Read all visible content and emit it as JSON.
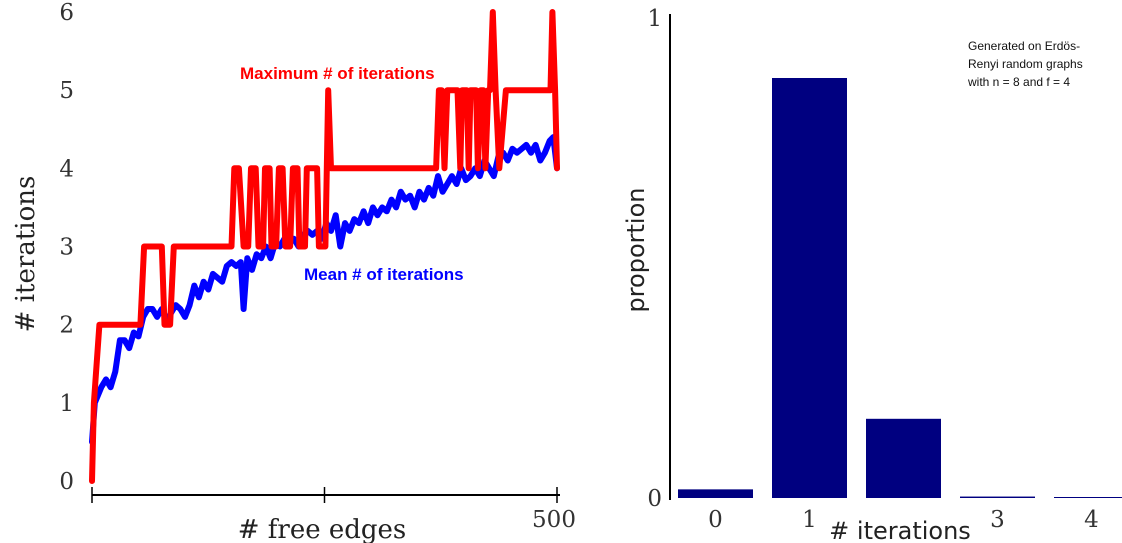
{
  "chart_data": [
    {
      "type": "line",
      "xlabel": "# free  edges",
      "ylabel": "# iterations",
      "xlim": [
        0,
        500
      ],
      "ylim": [
        0,
        6
      ],
      "x_tick_labels": [
        {
          "x": 0,
          "label": ""
        },
        {
          "x": 250,
          "label": ""
        },
        {
          "x": 500,
          "label": "500"
        }
      ],
      "y_ticks": [
        0,
        1,
        2,
        3,
        4,
        5,
        6
      ],
      "annotations": {
        "max_label": "Maximum # of iterations",
        "mean_label": "Mean # of iterations"
      },
      "series": [
        {
          "name": "Maximum # of iterations",
          "color": "#ff0000",
          "points": [
            [
              0,
              0
            ],
            [
              2,
              1
            ],
            [
              8,
              2
            ],
            [
              52,
              2
            ],
            [
              56,
              3
            ],
            [
              75,
              3
            ],
            [
              78,
              2
            ],
            [
              84,
              2
            ],
            [
              88,
              3
            ],
            [
              150,
              3
            ],
            [
              153,
              4
            ],
            [
              158,
              4
            ],
            [
              163,
              3
            ],
            [
              168,
              3
            ],
            [
              171,
              4
            ],
            [
              176,
              4
            ],
            [
              179,
              3
            ],
            [
              184,
              3
            ],
            [
              186,
              4
            ],
            [
              191,
              4
            ],
            [
              193,
              3
            ],
            [
              198,
              3
            ],
            [
              201,
              4
            ],
            [
              205,
              4
            ],
            [
              208,
              3
            ],
            [
              213,
              3
            ],
            [
              216,
              4
            ],
            [
              221,
              4
            ],
            [
              223,
              3
            ],
            [
              229,
              3
            ],
            [
              231,
              4
            ],
            [
              242,
              4
            ],
            [
              244,
              3
            ],
            [
              251,
              3
            ],
            [
              254,
              5
            ],
            [
              257,
              4
            ],
            [
              370,
              4
            ],
            [
              373,
              5
            ],
            [
              376,
              5
            ],
            [
              379,
              4
            ],
            [
              382,
              5
            ],
            [
              393,
              5
            ],
            [
              396,
              4
            ],
            [
              398,
              5
            ],
            [
              403,
              5
            ],
            [
              405,
              4
            ],
            [
              407,
              5
            ],
            [
              413,
              5
            ],
            [
              415,
              4
            ],
            [
              418,
              5
            ],
            [
              421,
              5
            ],
            [
              423,
              4
            ],
            [
              426,
              5
            ],
            [
              428,
              5
            ],
            [
              431,
              6
            ],
            [
              434,
              5
            ],
            [
              438,
              4
            ],
            [
              445,
              5
            ],
            [
              480,
              5
            ],
            [
              493,
              5
            ],
            [
              495,
              6
            ],
            [
              498,
              5
            ],
            [
              500,
              4
            ]
          ]
        },
        {
          "name": "Mean # of iterations",
          "color": "#0000ff",
          "points": [
            [
              0,
              0.5
            ],
            [
              3,
              1.0
            ],
            [
              10,
              1.2
            ],
            [
              15,
              1.3
            ],
            [
              20,
              1.2
            ],
            [
              25,
              1.4
            ],
            [
              30,
              1.8
            ],
            [
              35,
              1.8
            ],
            [
              40,
              1.7
            ],
            [
              45,
              1.9
            ],
            [
              50,
              1.85
            ],
            [
              55,
              2.1
            ],
            [
              60,
              2.2
            ],
            [
              65,
              2.2
            ],
            [
              70,
              2.1
            ],
            [
              75,
              2.2
            ],
            [
              80,
              2.05
            ],
            [
              85,
              2.15
            ],
            [
              90,
              2.25
            ],
            [
              95,
              2.2
            ],
            [
              100,
              2.1
            ],
            [
              105,
              2.25
            ],
            [
              110,
              2.5
            ],
            [
              115,
              2.35
            ],
            [
              120,
              2.55
            ],
            [
              125,
              2.45
            ],
            [
              130,
              2.65
            ],
            [
              135,
              2.6
            ],
            [
              140,
              2.55
            ],
            [
              145,
              2.75
            ],
            [
              150,
              2.8
            ],
            [
              155,
              2.75
            ],
            [
              160,
              2.8
            ],
            [
              163,
              2.2
            ],
            [
              167,
              2.85
            ],
            [
              172,
              2.7
            ],
            [
              177,
              2.9
            ],
            [
              182,
              2.85
            ],
            [
              187,
              3.0
            ],
            [
              192,
              2.85
            ],
            [
              197,
              3.05
            ],
            [
              202,
              3.0
            ],
            [
              207,
              3.1
            ],
            [
              212,
              3.05
            ],
            [
              217,
              3.1
            ],
            [
              222,
              3.0
            ],
            [
              227,
              3.15
            ],
            [
              232,
              3.2
            ],
            [
              237,
              3.15
            ],
            [
              242,
              3.2
            ],
            [
              247,
              3.1
            ],
            [
              252,
              3.3
            ],
            [
              257,
              3.2
            ],
            [
              262,
              3.4
            ],
            [
              267,
              3.0
            ],
            [
              272,
              3.3
            ],
            [
              277,
              3.2
            ],
            [
              282,
              3.35
            ],
            [
              287,
              3.3
            ],
            [
              292,
              3.45
            ],
            [
              297,
              3.3
            ],
            [
              302,
              3.5
            ],
            [
              307,
              3.4
            ],
            [
              312,
              3.5
            ],
            [
              317,
              3.45
            ],
            [
              322,
              3.6
            ],
            [
              327,
              3.5
            ],
            [
              332,
              3.7
            ],
            [
              337,
              3.6
            ],
            [
              342,
              3.65
            ],
            [
              347,
              3.5
            ],
            [
              352,
              3.7
            ],
            [
              357,
              3.6
            ],
            [
              362,
              3.75
            ],
            [
              367,
              3.65
            ],
            [
              372,
              3.9
            ],
            [
              377,
              3.7
            ],
            [
              382,
              3.8
            ],
            [
              387,
              3.9
            ],
            [
              392,
              3.8
            ],
            [
              397,
              4.0
            ],
            [
              402,
              3.85
            ],
            [
              407,
              3.9
            ],
            [
              412,
              4.0
            ],
            [
              417,
              3.9
            ],
            [
              422,
              4.1
            ],
            [
              427,
              4.0
            ],
            [
              432,
              3.9
            ],
            [
              437,
              4.15
            ],
            [
              442,
              4.2
            ],
            [
              447,
              4.1
            ],
            [
              452,
              4.25
            ],
            [
              457,
              4.2
            ],
            [
              462,
              4.25
            ],
            [
              467,
              4.3
            ],
            [
              472,
              4.2
            ],
            [
              477,
              4.3
            ],
            [
              482,
              4.1
            ],
            [
              487,
              4.2
            ],
            [
              492,
              4.35
            ],
            [
              496,
              4.4
            ],
            [
              500,
              4.0
            ]
          ]
        }
      ]
    },
    {
      "type": "bar",
      "xlabel": "# iterations",
      "ylabel": "proportion",
      "ylim": [
        0,
        1
      ],
      "y_ticks": [
        0,
        1
      ],
      "categories": [
        "0",
        "1",
        "2",
        "3",
        "4"
      ],
      "values": [
        0.018,
        0.875,
        0.165,
        0.003,
        0.001
      ],
      "bar_color": "#000080",
      "note_lines": [
        "Generated on Erdös-",
        "Renyi random graphs",
        "with n = 8 and f = 4"
      ]
    }
  ]
}
